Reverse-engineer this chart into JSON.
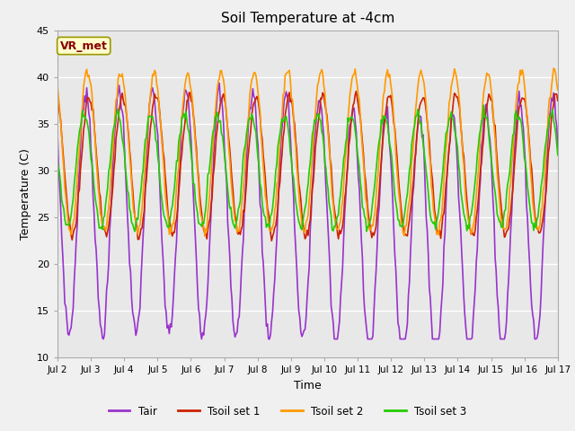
{
  "title": "Soil Temperature at -4cm",
  "xlabel": "Time",
  "ylabel": "Temperature (C)",
  "ylim": [
    10,
    45
  ],
  "yticks": [
    10,
    15,
    20,
    25,
    30,
    35,
    40,
    45
  ],
  "fig_bg": "#f0f0f0",
  "plot_bg": "#e8e8e8",
  "grid_color": "#ffffff",
  "legend_labels": [
    "Tair",
    "Tsoil set 1",
    "Tsoil set 2",
    "Tsoil set 3"
  ],
  "line_colors": [
    "#9933cc",
    "#cc2200",
    "#ff9900",
    "#22cc00"
  ],
  "vr_met_box_color": "#ffffcc",
  "vr_met_text_color": "#880000",
  "vr_met_border_color": "#999900",
  "xtick_labels": [
    "Jul 2",
    "Jul 3",
    "Jul 4",
    "Jul 5",
    "Jul 6",
    "Jul 7",
    "Jul 8",
    "Jul 9",
    "Jul 10",
    "Jul 11",
    "Jul 12",
    "Jul 13",
    "Jul 14",
    "Jul 15",
    "Jul 16",
    "Jul 17"
  ],
  "n_points": 480
}
